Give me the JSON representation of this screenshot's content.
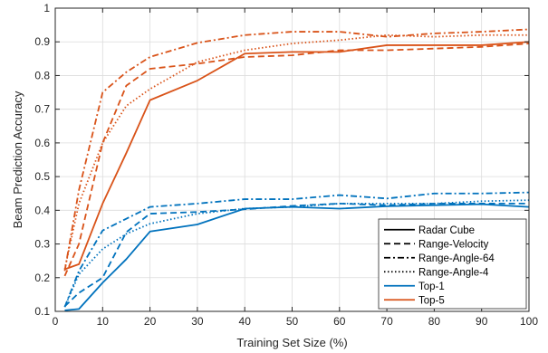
{
  "chart_data": {
    "type": "line",
    "xlabel": "Training Set Size (%)",
    "ylabel": "Beam Prediction Accuracy",
    "xlim": [
      0,
      100
    ],
    "ylim": [
      0.1,
      1
    ],
    "xticks": [
      0,
      10,
      20,
      30,
      40,
      50,
      60,
      70,
      80,
      90,
      100
    ],
    "yticks": [
      0.1,
      0.2,
      0.3,
      0.4,
      0.5,
      0.6,
      0.7,
      0.8,
      0.9,
      1
    ],
    "grid": true,
    "legend_position": "bottom-right",
    "legend": [
      {
        "label": "Radar Cube",
        "style": "solid",
        "color": "#000000"
      },
      {
        "label": "Range-Velocity",
        "style": "dashed",
        "color": "#000000"
      },
      {
        "label": "Range-Angle-64",
        "style": "dashdot",
        "color": "#000000"
      },
      {
        "label": "Range-Angle-4",
        "style": "dotted",
        "color": "#000000"
      },
      {
        "label": "Top-1",
        "style": "solid",
        "color": "#0072BD"
      },
      {
        "label": "Top-5",
        "style": "solid",
        "color": "#D95319"
      }
    ],
    "x": [
      2,
      5,
      10,
      15,
      20,
      30,
      40,
      50,
      60,
      70,
      80,
      90,
      100
    ],
    "series": [
      {
        "name": "Radar Cube Top-1",
        "style": "solid",
        "color": "#0072BD",
        "values": [
          0.103,
          0.107,
          0.185,
          0.255,
          0.337,
          0.358,
          0.405,
          0.41,
          0.405,
          0.412,
          0.415,
          0.418,
          0.41
        ]
      },
      {
        "name": "Range-Velocity Top-1",
        "style": "dashed",
        "color": "#0072BD",
        "values": [
          0.115,
          0.155,
          0.2,
          0.335,
          0.39,
          0.395,
          0.403,
          0.413,
          0.42,
          0.415,
          0.42,
          0.42,
          0.42
        ]
      },
      {
        "name": "Range-Angle-64 Top-1",
        "style": "dashdot",
        "color": "#0072BD",
        "values": [
          0.113,
          0.22,
          0.34,
          0.375,
          0.41,
          0.42,
          0.433,
          0.433,
          0.445,
          0.435,
          0.45,
          0.45,
          0.453
        ]
      },
      {
        "name": "Range-Angle-4 Top-1",
        "style": "dotted",
        "color": "#0072BD",
        "values": [
          0.113,
          0.21,
          0.285,
          0.33,
          0.36,
          0.39,
          0.405,
          0.41,
          0.42,
          0.42,
          0.42,
          0.427,
          0.43
        ]
      },
      {
        "name": "Radar Cube Top-5",
        "style": "solid",
        "color": "#D95319",
        "values": [
          0.225,
          0.24,
          0.42,
          0.57,
          0.727,
          0.785,
          0.865,
          0.87,
          0.87,
          0.89,
          0.89,
          0.89,
          0.9
        ]
      },
      {
        "name": "Range-Velocity Top-5",
        "style": "dashed",
        "color": "#D95319",
        "values": [
          0.205,
          0.3,
          0.6,
          0.77,
          0.82,
          0.835,
          0.855,
          0.86,
          0.875,
          0.875,
          0.88,
          0.885,
          0.895
        ]
      },
      {
        "name": "Range-Angle-64 Top-5",
        "style": "dashdot",
        "color": "#D95319",
        "values": [
          0.22,
          0.46,
          0.75,
          0.81,
          0.855,
          0.897,
          0.92,
          0.93,
          0.93,
          0.915,
          0.925,
          0.93,
          0.937
        ]
      },
      {
        "name": "Range-Angle-4 Top-5",
        "style": "dotted",
        "color": "#D95319",
        "values": [
          0.225,
          0.42,
          0.6,
          0.71,
          0.76,
          0.84,
          0.875,
          0.895,
          0.905,
          0.92,
          0.915,
          0.92,
          0.92
        ]
      }
    ]
  }
}
